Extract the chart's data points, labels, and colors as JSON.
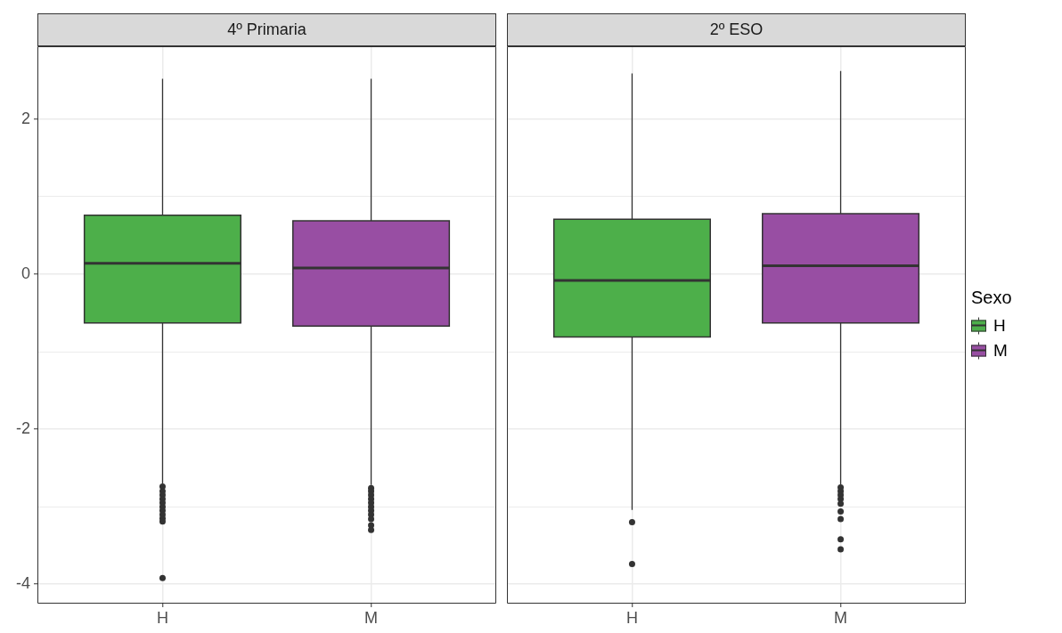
{
  "chart_data": [
    {
      "type": "box",
      "title": "4º Primaria",
      "categories": [
        "H",
        "M"
      ],
      "series": [
        {
          "color": "#4daf4a",
          "boxes": [
            {
              "low": -2.7,
              "q1": -0.63,
              "median": 0.14,
              "q3": 0.76,
              "high": 2.52,
              "outliers": [
                -2.74,
                -2.8,
                -2.85,
                -2.9,
                -2.95,
                -3.0,
                -3.05,
                -3.1,
                -3.15,
                -3.19,
                -3.92
              ]
            },
            null
          ]
        },
        {
          "color": "#984ea3",
          "boxes": [
            null,
            {
              "low": -2.72,
              "q1": -0.67,
              "median": 0.08,
              "q3": 0.69,
              "high": 2.52,
              "outliers": [
                -2.76,
                -2.8,
                -2.85,
                -2.9,
                -2.95,
                -3.0,
                -3.05,
                -3.1,
                -3.16,
                -3.24,
                -3.3
              ]
            }
          ]
        }
      ],
      "ylim": [
        -4.25,
        2.94
      ],
      "yticks": [
        -4,
        {
          "value": -3,
          "label": null
        },
        -2,
        {
          "value": -1,
          "label": null
        },
        0,
        {
          "value": 1,
          "label": null
        },
        2
      ],
      "grid": true
    },
    {
      "type": "box",
      "title": "2º ESO",
      "categories": [
        "H",
        "M"
      ],
      "series": [
        {
          "name": "H",
          "color": "#4daf4a",
          "boxes": [
            {
              "low": -3.04,
              "q1": -0.81,
              "median": -0.08,
              "q3": 0.71,
              "high": 2.59,
              "outliers": [
                -3.2,
                -3.74
              ]
            },
            null
          ]
        },
        {
          "name": "M",
          "color": "#984ea3",
          "boxes": [
            null,
            {
              "low": -2.71,
              "q1": -0.63,
              "median": 0.11,
              "q3": 0.78,
              "high": 2.62,
              "outliers": [
                -2.75,
                -2.8,
                -2.85,
                -2.9,
                -2.96,
                -3.06,
                -3.16,
                -3.42,
                -3.55
              ]
            }
          ]
        }
      ],
      "ylim": [
        -4.25,
        2.94
      ],
      "yticks": [
        -4,
        {
          "value": -3,
          "label": null
        },
        -2,
        {
          "value": -1,
          "label": null
        },
        0,
        {
          "value": 1,
          "label": null
        },
        2
      ],
      "grid": true,
      "tick_labels": "x",
      "legend": "right",
      "legend_title": "Sexo"
    }
  ]
}
